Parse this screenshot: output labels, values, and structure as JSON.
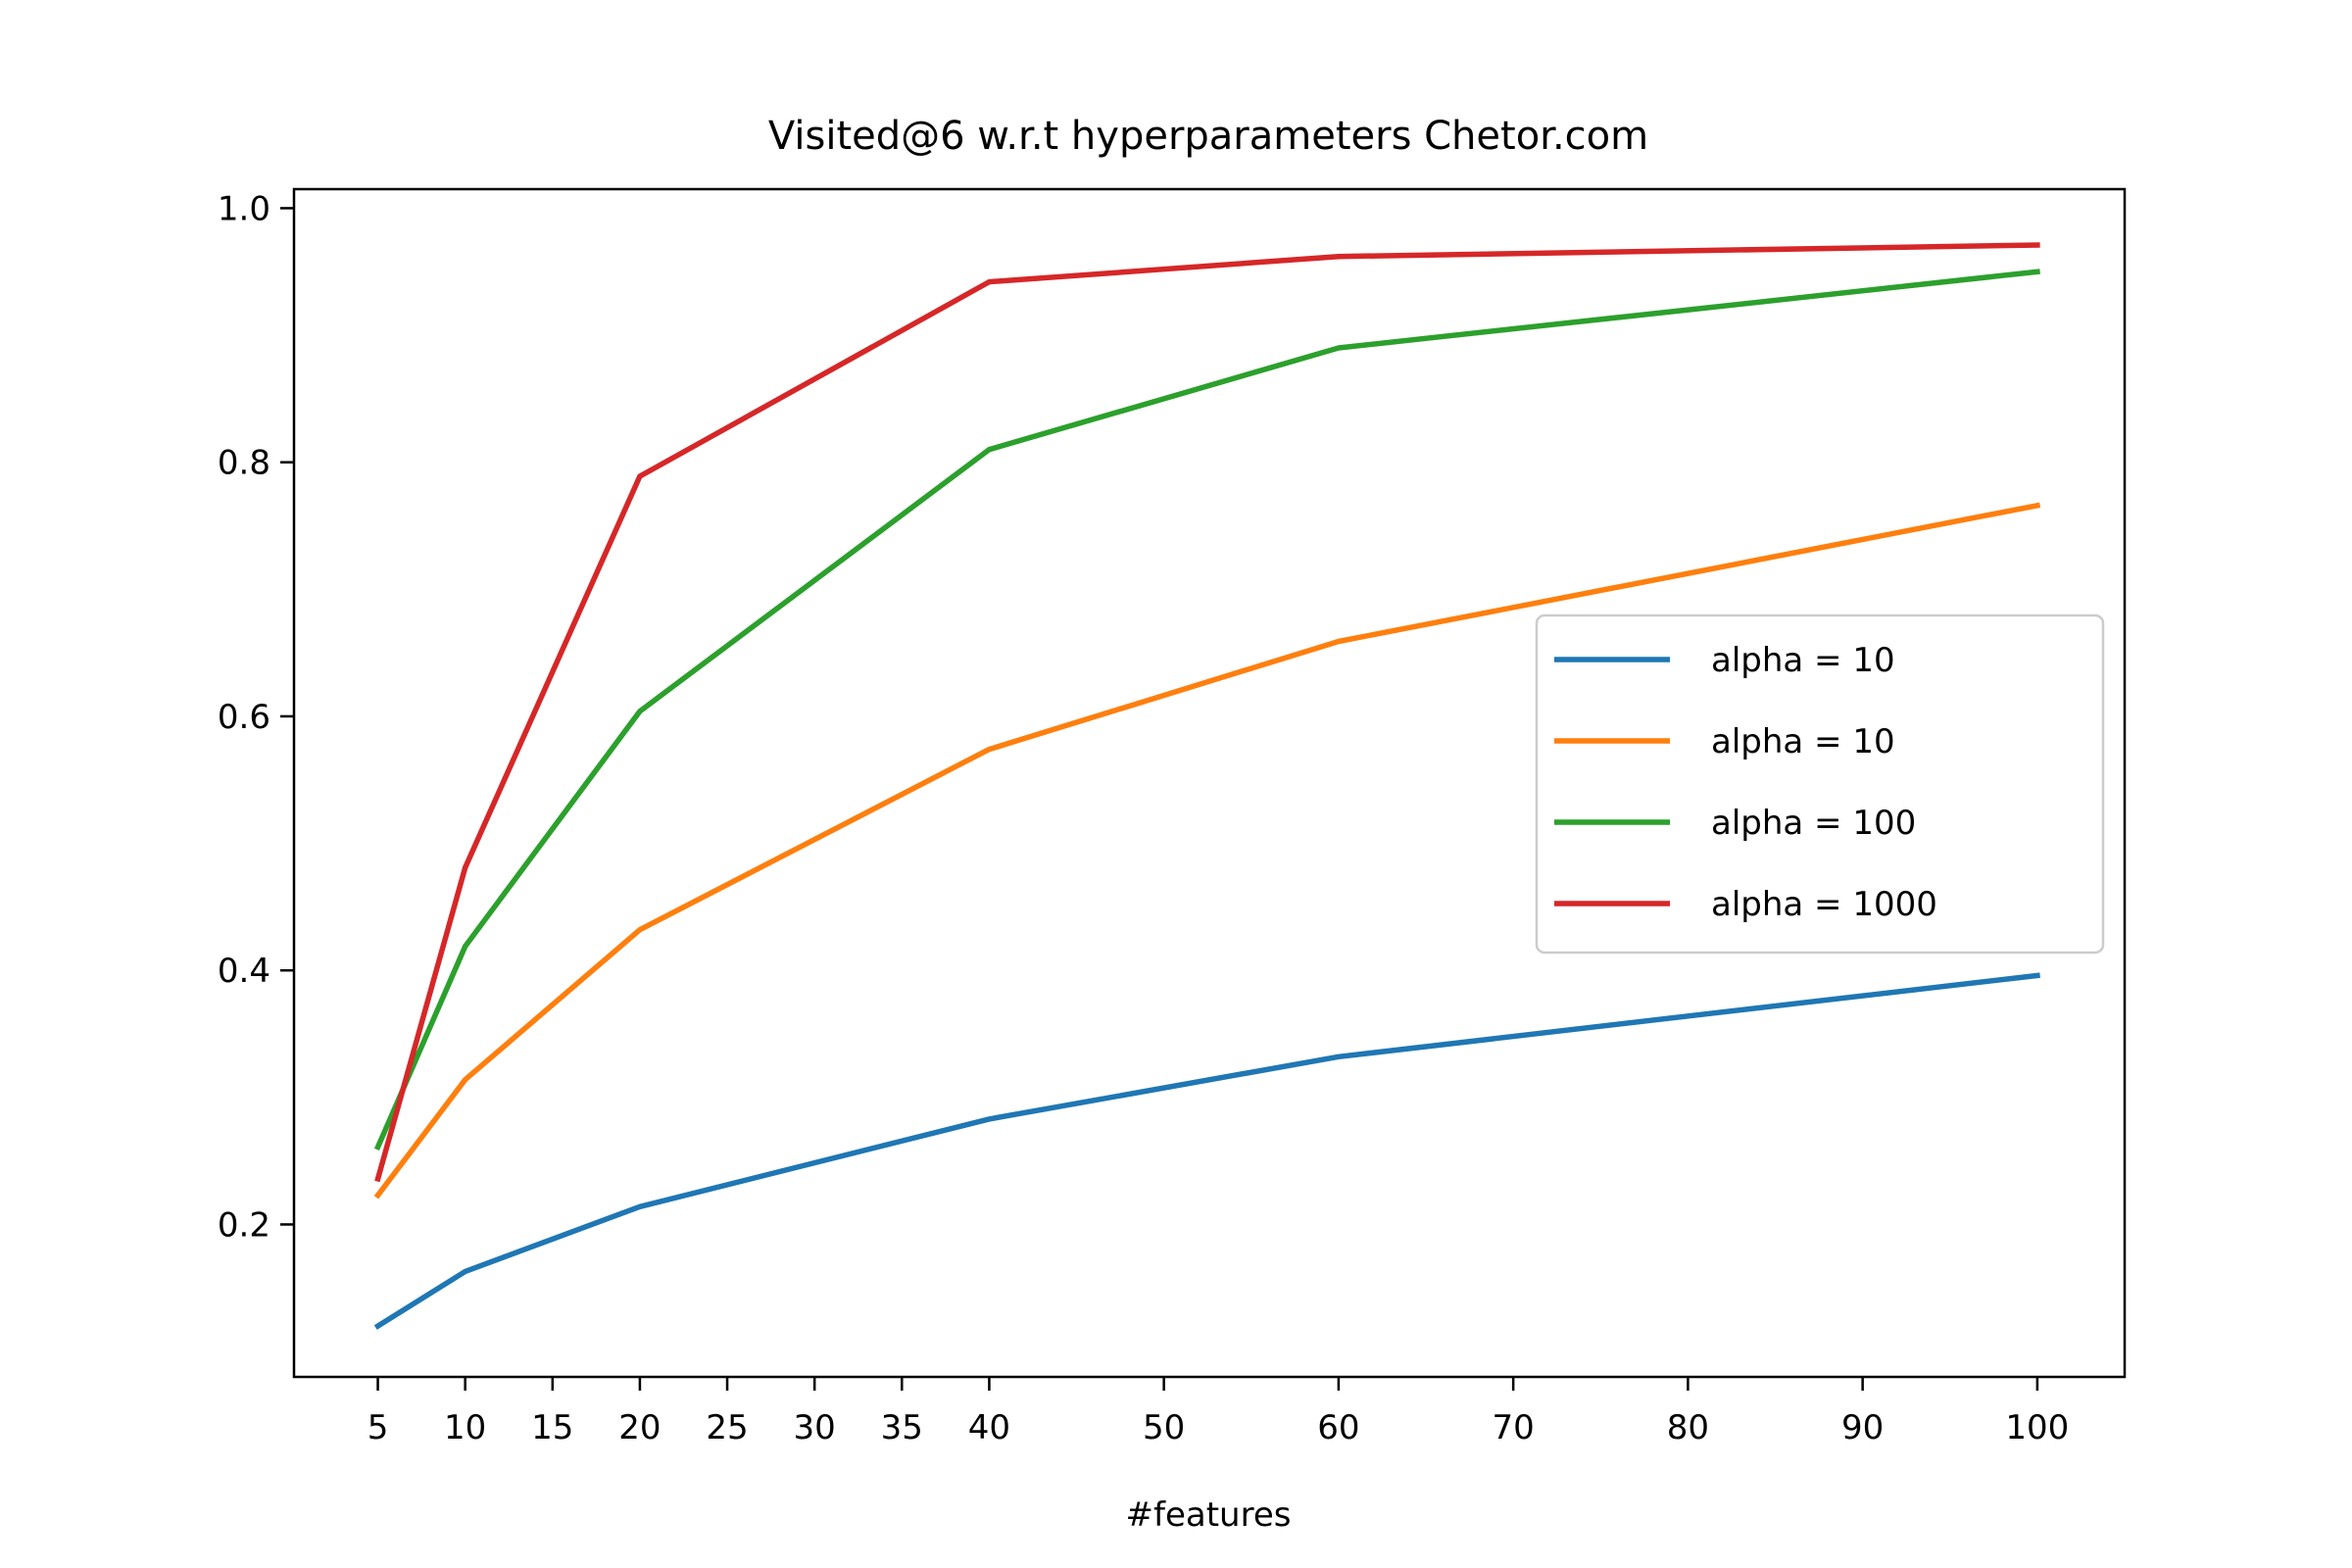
{
  "chart_data": {
    "type": "line",
    "title": "Visited@6 w.r.t hyperparameters Chetor.com",
    "xlabel": "#features",
    "ylabel": "",
    "x": [
      5,
      10,
      20,
      40,
      60,
      100
    ],
    "xticks": [
      5,
      10,
      15,
      20,
      25,
      30,
      35,
      40,
      50,
      60,
      70,
      80,
      90,
      100
    ],
    "yticks": [
      0.2,
      0.4,
      0.6,
      0.8,
      1.0
    ],
    "ytick_labels": [
      "0.2",
      "0.4",
      "0.6",
      "0.8",
      "1.0"
    ],
    "xlim": [
      0.2,
      105
    ],
    "ylim": [
      0.08,
      1.015
    ],
    "grid": false,
    "legend_position": "center-right",
    "series": [
      {
        "name": "alpha = 10",
        "color": "#1f77b4",
        "values": [
          0.12,
          0.163,
          0.214,
          0.283,
          0.332,
          0.396
        ]
      },
      {
        "name": "alpha = 10",
        "color": "#ff7f0e",
        "values": [
          0.223,
          0.314,
          0.432,
          0.574,
          0.659,
          0.766
        ]
      },
      {
        "name": "alpha = 100",
        "color": "#2ca02c",
        "values": [
          0.261,
          0.419,
          0.604,
          0.81,
          0.89,
          0.95
        ]
      },
      {
        "name": "alpha = 1000",
        "color": "#d62728",
        "values": [
          0.236,
          0.481,
          0.789,
          0.942,
          0.962,
          0.971
        ]
      }
    ]
  }
}
